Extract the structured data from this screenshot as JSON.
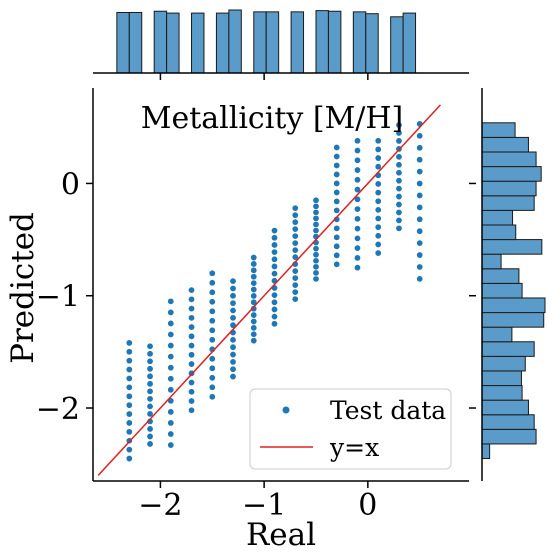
{
  "chart_data": {
    "type": "scatter",
    "title": "Metallicity [M/H]",
    "xlabel": "Real",
    "ylabel": "Predicted",
    "xlim": [
      -2.65,
      0.85
    ],
    "ylim": [
      -2.65,
      0.85
    ],
    "xticks": [
      -2,
      -1,
      0
    ],
    "yticks": [
      -2,
      -1,
      0
    ],
    "xtick_labels": [
      "−2",
      "−1",
      "0"
    ],
    "ytick_labels": [
      "−2",
      "−1",
      "0"
    ],
    "legend": {
      "location": "lower-right",
      "entries": [
        {
          "label": "Test data",
          "kind": "marker",
          "color": "#1f77b4"
        },
        {
          "label": "y=x",
          "kind": "line",
          "color": "#d62728"
        }
      ]
    },
    "colors": {
      "points": "#1f77b4",
      "identity_line": "#e02020",
      "histogram_fill": "#5a9bc9",
      "histogram_edge": "#1a1a1a"
    },
    "identity_line": {
      "x": [
        -2.6,
        0.7
      ],
      "y": [
        -2.6,
        0.7
      ]
    },
    "series": [
      {
        "real": -2.3,
        "pred_min": -2.45,
        "pred_max": -1.42
      },
      {
        "real": -2.1,
        "pred_min": -2.32,
        "pred_max": -1.45
      },
      {
        "real": -1.9,
        "pred_min": -2.33,
        "pred_max": -1.05
      },
      {
        "real": -1.7,
        "pred_min": -2.02,
        "pred_max": -0.95
      },
      {
        "real": -1.5,
        "pred_min": -1.9,
        "pred_max": -0.8
      },
      {
        "real": -1.3,
        "pred_min": -1.72,
        "pred_max": -0.87
      },
      {
        "real": -1.1,
        "pred_min": -1.4,
        "pred_max": -0.66
      },
      {
        "real": -0.9,
        "pred_min": -1.25,
        "pred_max": -0.42
      },
      {
        "real": -0.7,
        "pred_min": -1.03,
        "pred_max": -0.22
      },
      {
        "real": -0.5,
        "pred_min": -0.85,
        "pred_max": -0.15
      },
      {
        "real": -0.3,
        "pred_min": -0.72,
        "pred_max": 0.32
      },
      {
        "real": -0.1,
        "pred_min": -0.75,
        "pred_max": 0.38
      },
      {
        "real": 0.1,
        "pred_min": -0.62,
        "pred_max": 0.38
      },
      {
        "real": 0.3,
        "pred_min": -0.4,
        "pred_max": 0.52
      },
      {
        "real": 0.5,
        "pred_min": -0.85,
        "pred_max": 0.53
      }
    ],
    "top_histogram": {
      "bin_edges": [
        -2.42,
        -2.3,
        -2.18,
        -2.06,
        -1.94,
        -1.82,
        -1.7,
        -1.58,
        -1.46,
        -1.34,
        -1.22,
        -1.1,
        -0.98,
        -0.86,
        -0.74,
        -0.62,
        -0.5,
        -0.38,
        -0.26,
        -0.14,
        -0.02,
        0.1,
        0.22,
        0.34,
        0.46,
        0.58
      ],
      "counts": [
        98,
        98,
        0,
        100,
        97,
        0,
        97,
        0,
        97,
        102,
        0,
        99,
        99,
        0,
        99,
        0,
        101,
        100,
        0,
        99,
        96,
        0,
        91,
        97,
        0
      ],
      "count_max": 102
    },
    "right_histogram": {
      "bin_edges": [
        -2.45,
        -2.32,
        -2.19,
        -2.06,
        -1.93,
        -1.8,
        -1.67,
        -1.54,
        -1.41,
        -1.28,
        -1.15,
        -1.02,
        -0.89,
        -0.76,
        -0.63,
        -0.5,
        -0.37,
        -0.24,
        -0.11,
        0.02,
        0.15,
        0.28,
        0.41,
        0.54
      ],
      "counts": [
        12,
        85,
        82,
        73,
        63,
        62,
        68,
        82,
        47,
        97,
        99,
        63,
        58,
        30,
        94,
        53,
        48,
        82,
        85,
        93,
        85,
        73,
        52
      ],
      "count_max": 99
    }
  }
}
